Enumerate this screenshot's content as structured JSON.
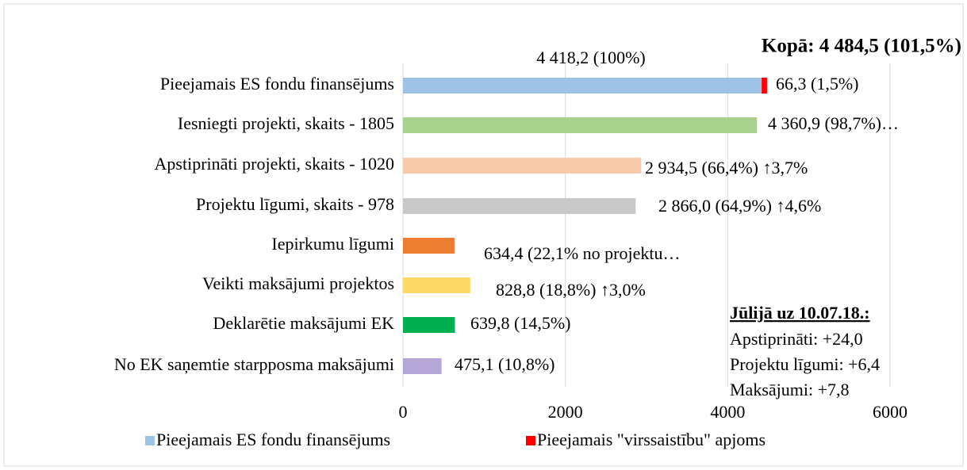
{
  "chart_data": {
    "type": "bar",
    "orientation": "horizontal",
    "stacked": true,
    "categories": [
      "Pieejamais ES fondu finansējums",
      "Iesniegti projekti, skaits - 1805",
      "Apstiprināti projekti, skaits - 1020",
      "Projektu līgumi, skaits - 978",
      "Iepirkumu līgumi",
      "Veikti maksājumi projektos",
      "Deklarētie maksājumi EK",
      "No EK saņemtie starpposma maksājumi"
    ],
    "series": [
      {
        "name": "Pieejamais ES fondu finansējums",
        "color": "#9dc3e6",
        "colors": [
          "#9dc3e6",
          "#a9d18e",
          "#f8cbad",
          "#c9c9c9",
          "#ed7d31",
          "#ffd966",
          "#00b050",
          "#b4a7d6"
        ],
        "values": [
          4418.2,
          4360.9,
          2934.5,
          2866.0,
          634.4,
          828.8,
          639.8,
          475.1
        ],
        "value_labels": [
          "4 418,2 (100%)",
          "4 360,9 (98,7%)…",
          "2 934,5 (66,4%) ↑3,7%",
          "2 866,0 (64,9%) ↑4,6%",
          "634,4 (22,1% no projektu…",
          "828,8 (18,8%) ↑3,0%",
          "639,8 (14,5%)",
          "475,1 (10,8%)"
        ]
      },
      {
        "name": "Pieejamais \"virssaistību\" apjoms",
        "color": "#ff0000",
        "values": [
          66.3,
          null,
          null,
          null,
          null,
          null,
          null,
          null
        ],
        "value_labels": [
          "66,3 (1,5%)",
          null,
          null,
          null,
          null,
          null,
          null,
          null
        ]
      }
    ],
    "xlim": [
      0,
      6000
    ],
    "xticks": [
      0,
      2000,
      4000,
      6000
    ],
    "grid": true,
    "legend": "bottom",
    "total_label": "Kopā: 4 484,5 (101,5%)",
    "note": {
      "title": "Jūlijā uz 10.07.18.:",
      "lines": [
        "Apstiprināti: +24,0",
        "Projektu līgumi: +6,4",
        "Maksājumi: +7,8"
      ]
    }
  }
}
